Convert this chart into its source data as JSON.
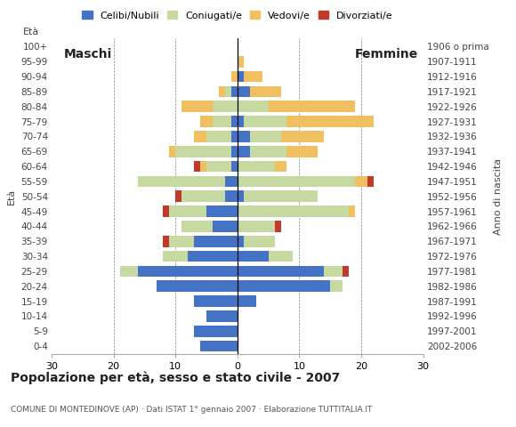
{
  "age_groups": [
    "0-4",
    "5-9",
    "10-14",
    "15-19",
    "20-24",
    "25-29",
    "30-34",
    "35-39",
    "40-44",
    "45-49",
    "50-54",
    "55-59",
    "60-64",
    "65-69",
    "70-74",
    "75-79",
    "80-84",
    "85-89",
    "90-94",
    "95-99",
    "100+"
  ],
  "birth_years": [
    "2002-2006",
    "1997-2001",
    "1992-1996",
    "1987-1991",
    "1982-1986",
    "1977-1981",
    "1972-1976",
    "1967-1971",
    "1962-1966",
    "1957-1961",
    "1952-1956",
    "1947-1951",
    "1942-1946",
    "1937-1941",
    "1932-1936",
    "1927-1931",
    "1922-1926",
    "1917-1921",
    "1912-1916",
    "1907-1911",
    "1906 o prima"
  ],
  "colors": {
    "celibi": "#4472c4",
    "coniugati": "#c5d9a0",
    "vedovi": "#f0c060",
    "divorziati": "#c0392b"
  },
  "maschi": {
    "celibi": [
      6,
      7,
      5,
      7,
      13,
      16,
      8,
      7,
      4,
      5,
      2,
      2,
      1,
      1,
      1,
      1,
      0,
      1,
      0,
      0,
      0
    ],
    "coniugati": [
      0,
      0,
      0,
      0,
      0,
      3,
      4,
      4,
      5,
      6,
      7,
      14,
      4,
      9,
      4,
      3,
      4,
      1,
      0,
      0,
      0
    ],
    "vedovi": [
      0,
      0,
      0,
      0,
      0,
      0,
      0,
      0,
      0,
      0,
      0,
      0,
      1,
      1,
      2,
      2,
      5,
      1,
      1,
      0,
      0
    ],
    "divorziati": [
      0,
      0,
      0,
      0,
      0,
      0,
      0,
      1,
      0,
      1,
      1,
      0,
      1,
      0,
      0,
      0,
      0,
      0,
      0,
      0,
      0
    ]
  },
  "femmine": {
    "celibi": [
      0,
      0,
      0,
      3,
      15,
      14,
      5,
      1,
      0,
      0,
      1,
      0,
      0,
      2,
      2,
      1,
      0,
      2,
      1,
      0,
      0
    ],
    "coniugati": [
      0,
      0,
      0,
      0,
      2,
      3,
      4,
      5,
      6,
      18,
      12,
      19,
      6,
      6,
      5,
      7,
      5,
      0,
      0,
      0,
      0
    ],
    "vedovi": [
      0,
      0,
      0,
      0,
      0,
      0,
      0,
      0,
      0,
      1,
      0,
      2,
      2,
      5,
      7,
      14,
      14,
      5,
      3,
      1,
      0
    ],
    "divorziati": [
      0,
      0,
      0,
      0,
      0,
      1,
      0,
      0,
      1,
      0,
      0,
      1,
      0,
      0,
      0,
      0,
      0,
      0,
      0,
      0,
      0
    ]
  },
  "xlim": 30,
  "title": "Popolazione per età, sesso e stato civile - 2007",
  "subtitle": "COMUNE DI MONTEDINOVE (AP) · Dati ISTAT 1° gennaio 2007 · Elaborazione TUTTITALIA.IT",
  "ylabel_left": "Età",
  "ylabel_right": "Anno di nascita",
  "label_maschi": "Maschi",
  "label_femmine": "Femmine",
  "legend_labels": [
    "Celibi/Nubili",
    "Coniugati/e",
    "Vedovi/e",
    "Divorziati/e"
  ],
  "bg_color": "#ffffff"
}
